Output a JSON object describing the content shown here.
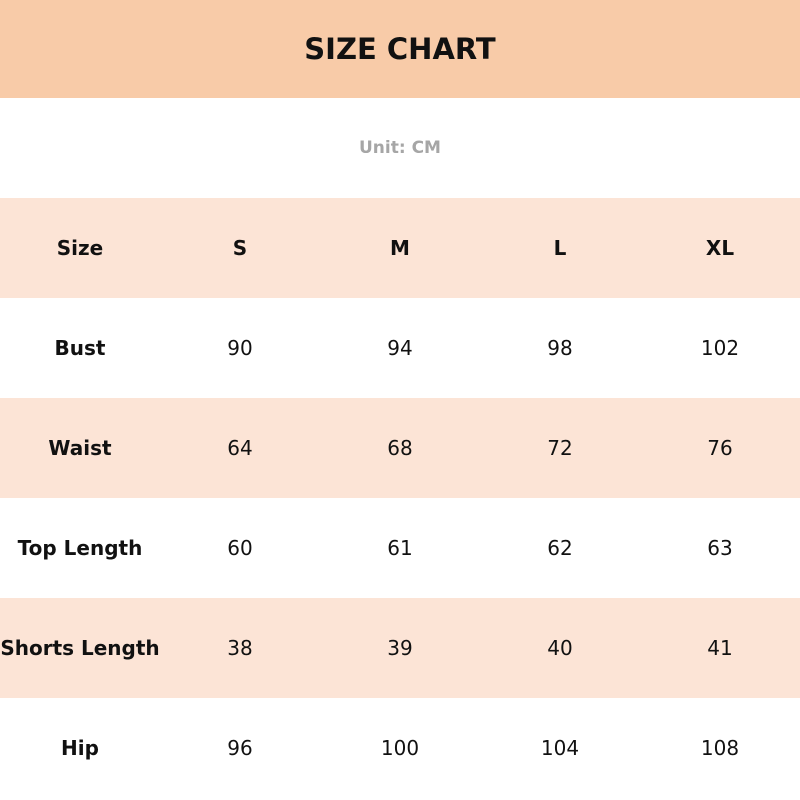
{
  "title": "SIZE CHART",
  "unit": "Unit: CM",
  "colors": {
    "title_band": "#F8CBA8",
    "stripe": "#FCE4D6",
    "unit_text": "#A6A6A6"
  },
  "header": [
    "Size",
    "S",
    "M",
    "L",
    "XL"
  ],
  "rows": [
    {
      "label": "Bust",
      "values": [
        "90",
        "94",
        "98",
        "102"
      ]
    },
    {
      "label": "Waist",
      "values": [
        "64",
        "68",
        "72",
        "76"
      ]
    },
    {
      "label": "Top Length",
      "values": [
        "60",
        "61",
        "62",
        "63"
      ]
    },
    {
      "label": "Shorts Length",
      "values": [
        "38",
        "39",
        "40",
        "41"
      ]
    },
    {
      "label": "Hip",
      "values": [
        "96",
        "100",
        "104",
        "108"
      ]
    }
  ]
}
